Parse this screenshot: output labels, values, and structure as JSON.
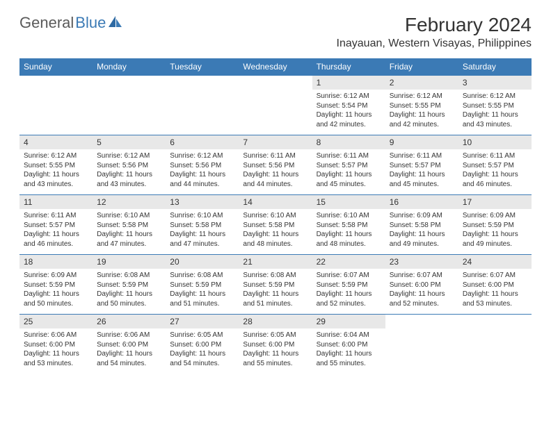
{
  "logo": {
    "part1": "General",
    "part2": "Blue"
  },
  "title": "February 2024",
  "location": "Inayauan, Western Visayas, Philippines",
  "colors": {
    "header_bg": "#3b7ab5",
    "header_text": "#ffffff",
    "daynum_bg": "#e8e8e8",
    "border": "#3b7ab5",
    "text": "#333333",
    "logo_gray": "#5a5a5a",
    "logo_blue": "#3b7ab5",
    "background": "#ffffff"
  },
  "day_names": [
    "Sunday",
    "Monday",
    "Tuesday",
    "Wednesday",
    "Thursday",
    "Friday",
    "Saturday"
  ],
  "weeks": [
    [
      {
        "n": "",
        "sunrise": "",
        "sunset": "",
        "daylight": ""
      },
      {
        "n": "",
        "sunrise": "",
        "sunset": "",
        "daylight": ""
      },
      {
        "n": "",
        "sunrise": "",
        "sunset": "",
        "daylight": ""
      },
      {
        "n": "",
        "sunrise": "",
        "sunset": "",
        "daylight": ""
      },
      {
        "n": "1",
        "sunrise": "Sunrise: 6:12 AM",
        "sunset": "Sunset: 5:54 PM",
        "daylight": "Daylight: 11 hours and 42 minutes."
      },
      {
        "n": "2",
        "sunrise": "Sunrise: 6:12 AM",
        "sunset": "Sunset: 5:55 PM",
        "daylight": "Daylight: 11 hours and 42 minutes."
      },
      {
        "n": "3",
        "sunrise": "Sunrise: 6:12 AM",
        "sunset": "Sunset: 5:55 PM",
        "daylight": "Daylight: 11 hours and 43 minutes."
      }
    ],
    [
      {
        "n": "4",
        "sunrise": "Sunrise: 6:12 AM",
        "sunset": "Sunset: 5:55 PM",
        "daylight": "Daylight: 11 hours and 43 minutes."
      },
      {
        "n": "5",
        "sunrise": "Sunrise: 6:12 AM",
        "sunset": "Sunset: 5:56 PM",
        "daylight": "Daylight: 11 hours and 43 minutes."
      },
      {
        "n": "6",
        "sunrise": "Sunrise: 6:12 AM",
        "sunset": "Sunset: 5:56 PM",
        "daylight": "Daylight: 11 hours and 44 minutes."
      },
      {
        "n": "7",
        "sunrise": "Sunrise: 6:11 AM",
        "sunset": "Sunset: 5:56 PM",
        "daylight": "Daylight: 11 hours and 44 minutes."
      },
      {
        "n": "8",
        "sunrise": "Sunrise: 6:11 AM",
        "sunset": "Sunset: 5:57 PM",
        "daylight": "Daylight: 11 hours and 45 minutes."
      },
      {
        "n": "9",
        "sunrise": "Sunrise: 6:11 AM",
        "sunset": "Sunset: 5:57 PM",
        "daylight": "Daylight: 11 hours and 45 minutes."
      },
      {
        "n": "10",
        "sunrise": "Sunrise: 6:11 AM",
        "sunset": "Sunset: 5:57 PM",
        "daylight": "Daylight: 11 hours and 46 minutes."
      }
    ],
    [
      {
        "n": "11",
        "sunrise": "Sunrise: 6:11 AM",
        "sunset": "Sunset: 5:57 PM",
        "daylight": "Daylight: 11 hours and 46 minutes."
      },
      {
        "n": "12",
        "sunrise": "Sunrise: 6:10 AM",
        "sunset": "Sunset: 5:58 PM",
        "daylight": "Daylight: 11 hours and 47 minutes."
      },
      {
        "n": "13",
        "sunrise": "Sunrise: 6:10 AM",
        "sunset": "Sunset: 5:58 PM",
        "daylight": "Daylight: 11 hours and 47 minutes."
      },
      {
        "n": "14",
        "sunrise": "Sunrise: 6:10 AM",
        "sunset": "Sunset: 5:58 PM",
        "daylight": "Daylight: 11 hours and 48 minutes."
      },
      {
        "n": "15",
        "sunrise": "Sunrise: 6:10 AM",
        "sunset": "Sunset: 5:58 PM",
        "daylight": "Daylight: 11 hours and 48 minutes."
      },
      {
        "n": "16",
        "sunrise": "Sunrise: 6:09 AM",
        "sunset": "Sunset: 5:58 PM",
        "daylight": "Daylight: 11 hours and 49 minutes."
      },
      {
        "n": "17",
        "sunrise": "Sunrise: 6:09 AM",
        "sunset": "Sunset: 5:59 PM",
        "daylight": "Daylight: 11 hours and 49 minutes."
      }
    ],
    [
      {
        "n": "18",
        "sunrise": "Sunrise: 6:09 AM",
        "sunset": "Sunset: 5:59 PM",
        "daylight": "Daylight: 11 hours and 50 minutes."
      },
      {
        "n": "19",
        "sunrise": "Sunrise: 6:08 AM",
        "sunset": "Sunset: 5:59 PM",
        "daylight": "Daylight: 11 hours and 50 minutes."
      },
      {
        "n": "20",
        "sunrise": "Sunrise: 6:08 AM",
        "sunset": "Sunset: 5:59 PM",
        "daylight": "Daylight: 11 hours and 51 minutes."
      },
      {
        "n": "21",
        "sunrise": "Sunrise: 6:08 AM",
        "sunset": "Sunset: 5:59 PM",
        "daylight": "Daylight: 11 hours and 51 minutes."
      },
      {
        "n": "22",
        "sunrise": "Sunrise: 6:07 AM",
        "sunset": "Sunset: 5:59 PM",
        "daylight": "Daylight: 11 hours and 52 minutes."
      },
      {
        "n": "23",
        "sunrise": "Sunrise: 6:07 AM",
        "sunset": "Sunset: 6:00 PM",
        "daylight": "Daylight: 11 hours and 52 minutes."
      },
      {
        "n": "24",
        "sunrise": "Sunrise: 6:07 AM",
        "sunset": "Sunset: 6:00 PM",
        "daylight": "Daylight: 11 hours and 53 minutes."
      }
    ],
    [
      {
        "n": "25",
        "sunrise": "Sunrise: 6:06 AM",
        "sunset": "Sunset: 6:00 PM",
        "daylight": "Daylight: 11 hours and 53 minutes."
      },
      {
        "n": "26",
        "sunrise": "Sunrise: 6:06 AM",
        "sunset": "Sunset: 6:00 PM",
        "daylight": "Daylight: 11 hours and 54 minutes."
      },
      {
        "n": "27",
        "sunrise": "Sunrise: 6:05 AM",
        "sunset": "Sunset: 6:00 PM",
        "daylight": "Daylight: 11 hours and 54 minutes."
      },
      {
        "n": "28",
        "sunrise": "Sunrise: 6:05 AM",
        "sunset": "Sunset: 6:00 PM",
        "daylight": "Daylight: 11 hours and 55 minutes."
      },
      {
        "n": "29",
        "sunrise": "Sunrise: 6:04 AM",
        "sunset": "Sunset: 6:00 PM",
        "daylight": "Daylight: 11 hours and 55 minutes."
      },
      {
        "n": "",
        "sunrise": "",
        "sunset": "",
        "daylight": ""
      },
      {
        "n": "",
        "sunrise": "",
        "sunset": "",
        "daylight": ""
      }
    ]
  ]
}
